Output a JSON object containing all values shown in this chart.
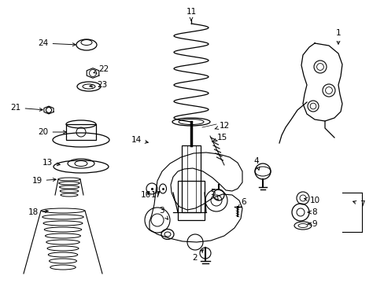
{
  "bg_color": "#ffffff",
  "line_color": "#000000",
  "figsize": [
    4.89,
    3.6
  ],
  "dpi": 100,
  "labels": [
    [
      "1",
      430,
      42,
      430,
      60
    ],
    [
      "2",
      248,
      328,
      261,
      315
    ],
    [
      "3",
      205,
      268,
      214,
      280
    ],
    [
      "4",
      326,
      205,
      330,
      220
    ],
    [
      "5",
      270,
      245,
      278,
      255
    ],
    [
      "6",
      310,
      257,
      302,
      265
    ],
    [
      "7",
      460,
      260,
      445,
      255
    ],
    [
      "8",
      400,
      270,
      388,
      270
    ],
    [
      "9",
      400,
      285,
      388,
      285
    ],
    [
      "10",
      400,
      255,
      383,
      252
    ],
    [
      "11",
      243,
      15,
      243,
      27
    ],
    [
      "12",
      285,
      160,
      270,
      165
    ],
    [
      "13",
      60,
      207,
      80,
      210
    ],
    [
      "14",
      173,
      178,
      192,
      182
    ],
    [
      "15",
      282,
      175,
      270,
      180
    ],
    [
      "16",
      185,
      248,
      193,
      242
    ],
    [
      "17",
      198,
      248,
      205,
      242
    ],
    [
      "18",
      42,
      270,
      65,
      268
    ],
    [
      "19",
      47,
      230,
      75,
      228
    ],
    [
      "20",
      55,
      168,
      88,
      168
    ],
    [
      "21",
      20,
      137,
      58,
      140
    ],
    [
      "22",
      132,
      88,
      118,
      93
    ],
    [
      "23",
      130,
      108,
      110,
      110
    ],
    [
      "24",
      55,
      55,
      100,
      57
    ]
  ]
}
